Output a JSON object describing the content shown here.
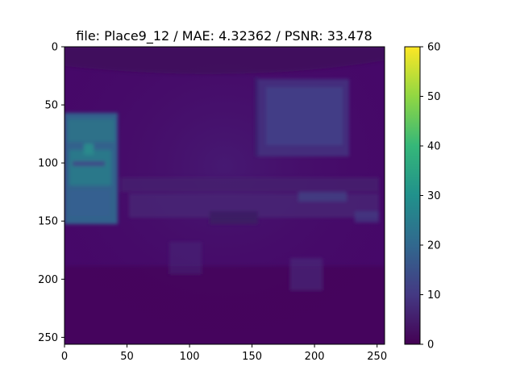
{
  "chart_data": {
    "type": "heatmap",
    "title": "file: Place9_12 / MAE: 4.32362 / PSNR: 33.478",
    "xlabel": "",
    "ylabel": "",
    "x_ticks": [
      "0",
      "50",
      "100",
      "150",
      "200",
      "250"
    ],
    "y_ticks": [
      "0",
      "50",
      "100",
      "150",
      "200",
      "250"
    ],
    "xlim": [
      0,
      256
    ],
    "ylim": [
      256,
      0
    ],
    "colormap": "viridis",
    "colorbar": {
      "min": 0,
      "max": 60,
      "ticks": [
        "0",
        "10",
        "20",
        "30",
        "40",
        "50",
        "60"
      ]
    },
    "grid": false
  }
}
